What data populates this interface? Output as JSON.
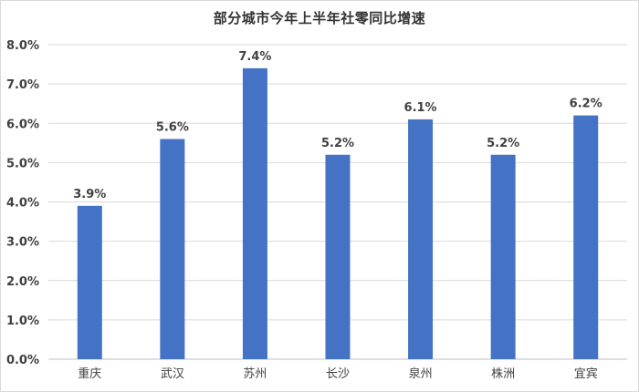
{
  "chart_data": {
    "type": "bar",
    "title": "部分城市今年上半年社零同比增速",
    "xlabel": "",
    "ylabel": "",
    "categories": [
      "重庆",
      "武汉",
      "苏州",
      "长沙",
      "泉州",
      "株洲",
      "宜宾"
    ],
    "values": [
      3.9,
      5.6,
      7.4,
      5.2,
      6.1,
      5.2,
      6.2
    ],
    "value_labels": [
      "3.9%",
      "5.6%",
      "7.4%",
      "5.2%",
      "6.1%",
      "5.2%",
      "6.2%"
    ],
    "ylim": [
      0,
      8
    ],
    "yticks": [
      0,
      1,
      2,
      3,
      4,
      5,
      6,
      7,
      8
    ],
    "ytick_labels": [
      "0.0%",
      "1.0%",
      "2.0%",
      "3.0%",
      "4.0%",
      "5.0%",
      "6.0%",
      "7.0%",
      "8.0%"
    ],
    "grid": true,
    "legend": "none",
    "bar_color": "#4472c4",
    "grid_color": "#d9d9d9"
  }
}
